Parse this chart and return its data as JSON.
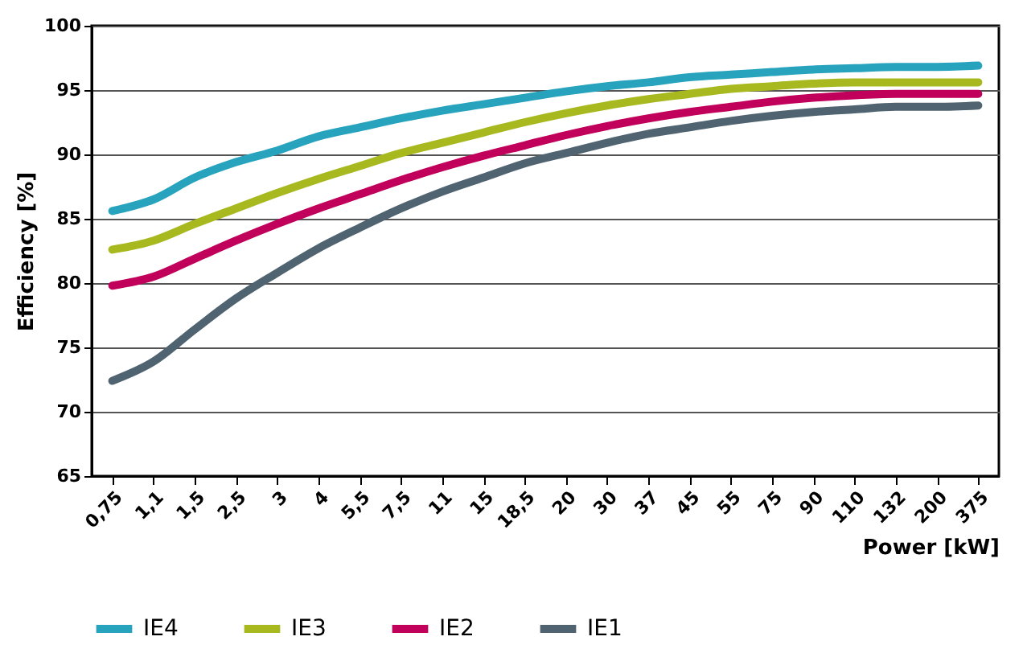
{
  "chart_data": {
    "type": "line",
    "xlabel": "Power [kW]",
    "ylabel": "Efficiency [%]",
    "categories": [
      "0,75",
      "1,1",
      "1,5",
      "2,5",
      "3",
      "4",
      "5,5",
      "7,5",
      "11",
      "15",
      "18,5",
      "20",
      "30",
      "37",
      "45",
      "55",
      "75",
      "90",
      "110",
      "132",
      "200",
      "375"
    ],
    "series": [
      {
        "name": "IE4",
        "color": "#27a3bd",
        "values": [
          85.6,
          86.5,
          88.2,
          89.4,
          90.3,
          91.4,
          92.1,
          92.8,
          93.4,
          93.9,
          94.4,
          94.9,
          95.3,
          95.6,
          96.0,
          96.2,
          96.4,
          96.6,
          96.7,
          96.8,
          96.8,
          96.9
        ]
      },
      {
        "name": "IE3",
        "color": "#a8b920",
        "values": [
          82.6,
          83.3,
          84.6,
          85.8,
          87.0,
          88.1,
          89.1,
          90.1,
          90.9,
          91.7,
          92.5,
          93.2,
          93.8,
          94.3,
          94.7,
          95.1,
          95.3,
          95.5,
          95.6,
          95.6,
          95.6,
          95.6
        ]
      },
      {
        "name": "IE2",
        "color": "#c0005a",
        "values": [
          79.8,
          80.5,
          81.9,
          83.3,
          84.6,
          85.8,
          86.9,
          88.0,
          89.0,
          89.9,
          90.7,
          91.5,
          92.2,
          92.8,
          93.3,
          93.7,
          94.1,
          94.4,
          94.6,
          94.7,
          94.7,
          94.7
        ]
      },
      {
        "name": "IE1",
        "color": "#4f6470",
        "values": [
          72.4,
          73.9,
          76.4,
          78.8,
          80.8,
          82.7,
          84.3,
          85.8,
          87.1,
          88.2,
          89.3,
          90.1,
          90.9,
          91.6,
          92.1,
          92.6,
          93.0,
          93.3,
          93.5,
          93.7,
          93.7,
          93.8
        ]
      }
    ],
    "ylim": [
      65,
      100
    ],
    "yticks": [
      65,
      70,
      75,
      80,
      85,
      90,
      95,
      100
    ],
    "grid": "y",
    "legend": "bottom left",
    "marker": "none",
    "line_style": "solid"
  }
}
